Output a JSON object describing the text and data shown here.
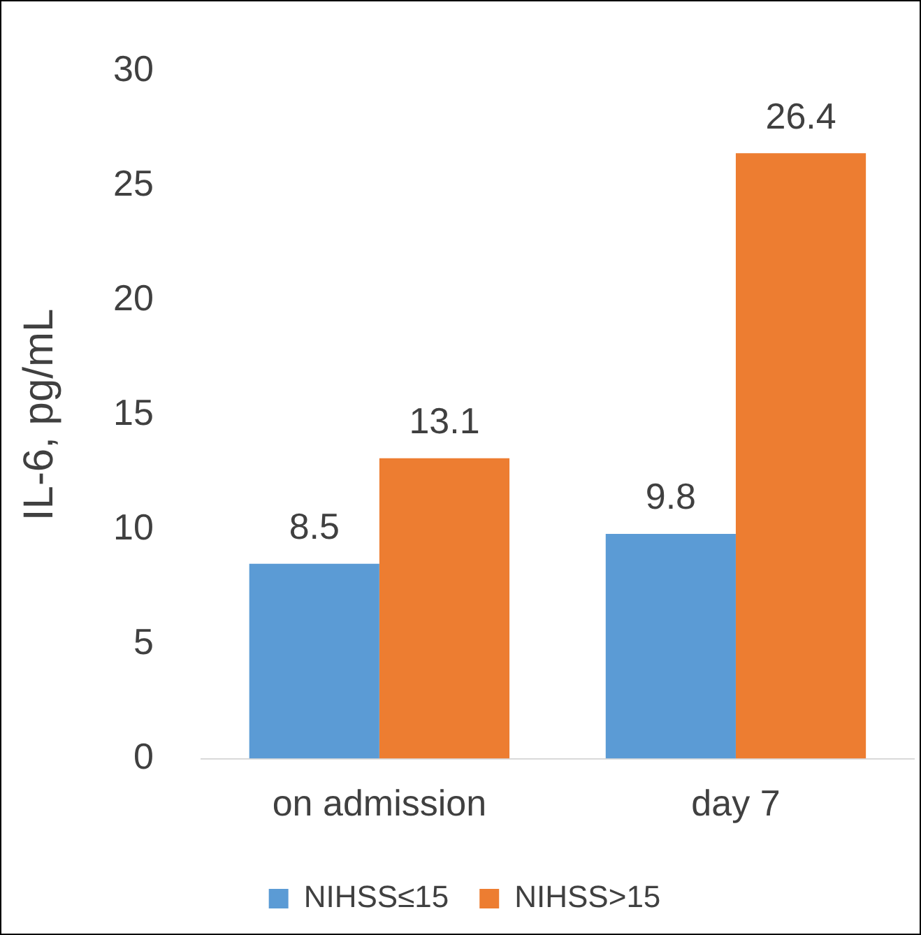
{
  "chart_data": {
    "type": "bar",
    "ylabel": "IL-6, pg/mL",
    "categories": [
      "on admission",
      "day 7"
    ],
    "series": [
      {
        "name": "NIHSS≤15",
        "color": "#5b9bd5",
        "values": [
          8.5,
          9.8
        ]
      },
      {
        "name": "NIHSS>15",
        "color": "#ed7d31",
        "values": [
          13.1,
          26.4
        ]
      }
    ],
    "ylim": [
      0,
      30
    ],
    "yticks": [
      0,
      5,
      10,
      15,
      20,
      25,
      30
    ],
    "grid": false,
    "legend": "bottom",
    "data_labels": true
  }
}
